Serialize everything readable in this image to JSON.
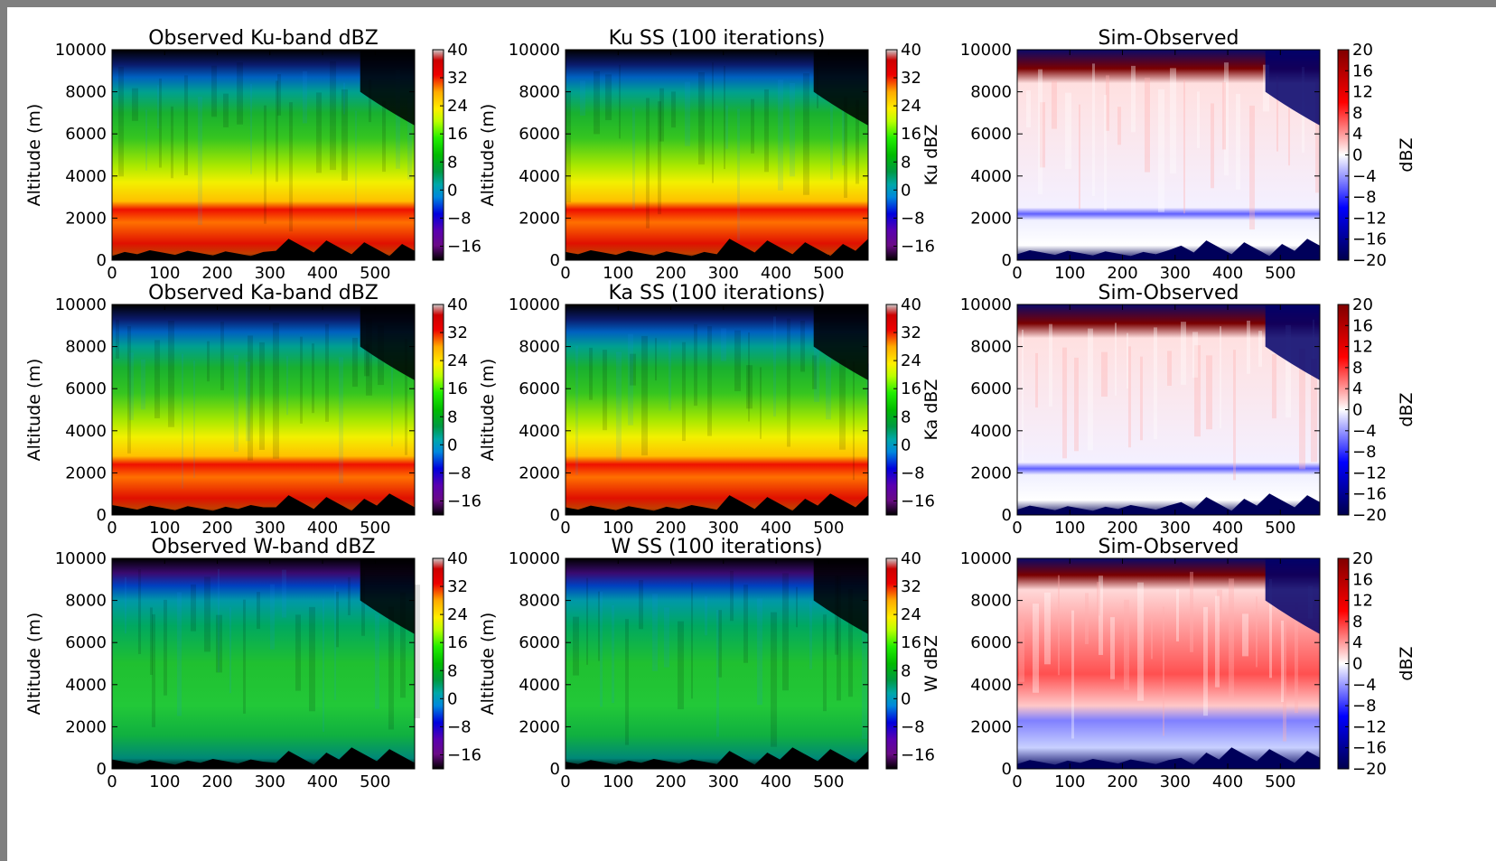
{
  "chart_data": [
    {
      "type": "heatmap",
      "title": "Observed Ku-band dBZ",
      "ylabel": "Altitude (m)",
      "cbar_label": "",
      "x_ticks": [
        0,
        100,
        200,
        300,
        400,
        500
      ],
      "xlim": [
        0,
        575
      ],
      "y_ticks": [
        0,
        2000,
        4000,
        6000,
        8000,
        10000
      ],
      "ylim": [
        0,
        10000
      ],
      "colormap": "nipy_spectral",
      "cbar_ticks": [
        -16,
        -8,
        0,
        8,
        16,
        24,
        32,
        40
      ],
      "cbar_range": [
        -20,
        40
      ]
    },
    {
      "type": "heatmap",
      "title": "Ku SS (100 iterations)",
      "ylabel": "Altitude (m)",
      "cbar_label": "Ku dBZ",
      "x_ticks": [
        0,
        100,
        200,
        300,
        400,
        500
      ],
      "xlim": [
        0,
        575
      ],
      "y_ticks": [
        0,
        2000,
        4000,
        6000,
        8000,
        10000
      ],
      "ylim": [
        0,
        10000
      ],
      "colormap": "nipy_spectral",
      "cbar_ticks": [
        -16,
        -8,
        0,
        8,
        16,
        24,
        32,
        40
      ],
      "cbar_range": [
        -20,
        40
      ]
    },
    {
      "type": "heatmap",
      "title": "Sim-Observed",
      "ylabel": "",
      "cbar_label": "dBZ",
      "x_ticks": [
        0,
        100,
        200,
        300,
        400,
        500
      ],
      "xlim": [
        0,
        575
      ],
      "y_ticks": [
        0,
        2000,
        4000,
        6000,
        8000,
        10000
      ],
      "ylim": [
        0,
        10000
      ],
      "colormap": "seismic",
      "cbar_ticks": [
        -20,
        -16,
        -12,
        -8,
        -4,
        0,
        4,
        8,
        12,
        16,
        20
      ],
      "cbar_range": [
        -20,
        20
      ]
    },
    {
      "type": "heatmap",
      "title": "Observed Ka-band dBZ",
      "ylabel": "Altitude (m)",
      "cbar_label": "",
      "x_ticks": [
        0,
        100,
        200,
        300,
        400,
        500
      ],
      "xlim": [
        0,
        575
      ],
      "y_ticks": [
        0,
        2000,
        4000,
        6000,
        8000,
        10000
      ],
      "ylim": [
        0,
        10000
      ],
      "colormap": "nipy_spectral",
      "cbar_ticks": [
        -16,
        -8,
        0,
        8,
        16,
        24,
        32,
        40
      ],
      "cbar_range": [
        -20,
        40
      ]
    },
    {
      "type": "heatmap",
      "title": "Ka SS (100 iterations)",
      "ylabel": "Altitude (m)",
      "cbar_label": "Ka dBZ",
      "x_ticks": [
        0,
        100,
        200,
        300,
        400,
        500
      ],
      "xlim": [
        0,
        575
      ],
      "y_ticks": [
        0,
        2000,
        4000,
        6000,
        8000,
        10000
      ],
      "ylim": [
        0,
        10000
      ],
      "colormap": "nipy_spectral",
      "cbar_ticks": [
        -16,
        -8,
        0,
        8,
        16,
        24,
        32,
        40
      ],
      "cbar_range": [
        -20,
        40
      ]
    },
    {
      "type": "heatmap",
      "title": "Sim-Observed",
      "ylabel": "",
      "cbar_label": "dBZ",
      "x_ticks": [
        0,
        100,
        200,
        300,
        400,
        500
      ],
      "xlim": [
        0,
        575
      ],
      "y_ticks": [
        0,
        2000,
        4000,
        6000,
        8000,
        10000
      ],
      "ylim": [
        0,
        10000
      ],
      "colormap": "seismic",
      "cbar_ticks": [
        -20,
        -16,
        -12,
        -8,
        -4,
        0,
        4,
        8,
        12,
        16,
        20
      ],
      "cbar_range": [
        -20,
        20
      ]
    },
    {
      "type": "heatmap",
      "title": "Observed W-band dBZ",
      "ylabel": "Altitude (m)",
      "cbar_label": "",
      "x_ticks": [
        0,
        100,
        200,
        300,
        400,
        500
      ],
      "xlim": [
        0,
        575
      ],
      "y_ticks": [
        0,
        2000,
        4000,
        6000,
        8000,
        10000
      ],
      "ylim": [
        0,
        10000
      ],
      "colormap": "nipy_spectral",
      "cbar_ticks": [
        -16,
        -8,
        0,
        8,
        16,
        24,
        32,
        40
      ],
      "cbar_range": [
        -20,
        40
      ]
    },
    {
      "type": "heatmap",
      "title": "W SS (100 iterations)",
      "ylabel": "Altitude (m)",
      "cbar_label": "W dBZ",
      "x_ticks": [
        0,
        100,
        200,
        300,
        400,
        500
      ],
      "xlim": [
        0,
        575
      ],
      "y_ticks": [
        0,
        2000,
        4000,
        6000,
        8000,
        10000
      ],
      "ylim": [
        0,
        10000
      ],
      "colormap": "nipy_spectral",
      "cbar_ticks": [
        -16,
        -8,
        0,
        8,
        16,
        24,
        32,
        40
      ],
      "cbar_range": [
        -20,
        40
      ]
    },
    {
      "type": "heatmap",
      "title": "Sim-Observed",
      "ylabel": "",
      "cbar_label": "dBZ",
      "x_ticks": [
        0,
        100,
        200,
        300,
        400,
        500
      ],
      "xlim": [
        0,
        575
      ],
      "y_ticks": [
        0,
        2000,
        4000,
        6000,
        8000,
        10000
      ],
      "ylim": [
        0,
        10000
      ],
      "colormap": "seismic",
      "cbar_ticks": [
        -20,
        -16,
        -12,
        -8,
        -4,
        0,
        4,
        8,
        12,
        16,
        20
      ],
      "cbar_range": [
        -20,
        20
      ]
    }
  ]
}
